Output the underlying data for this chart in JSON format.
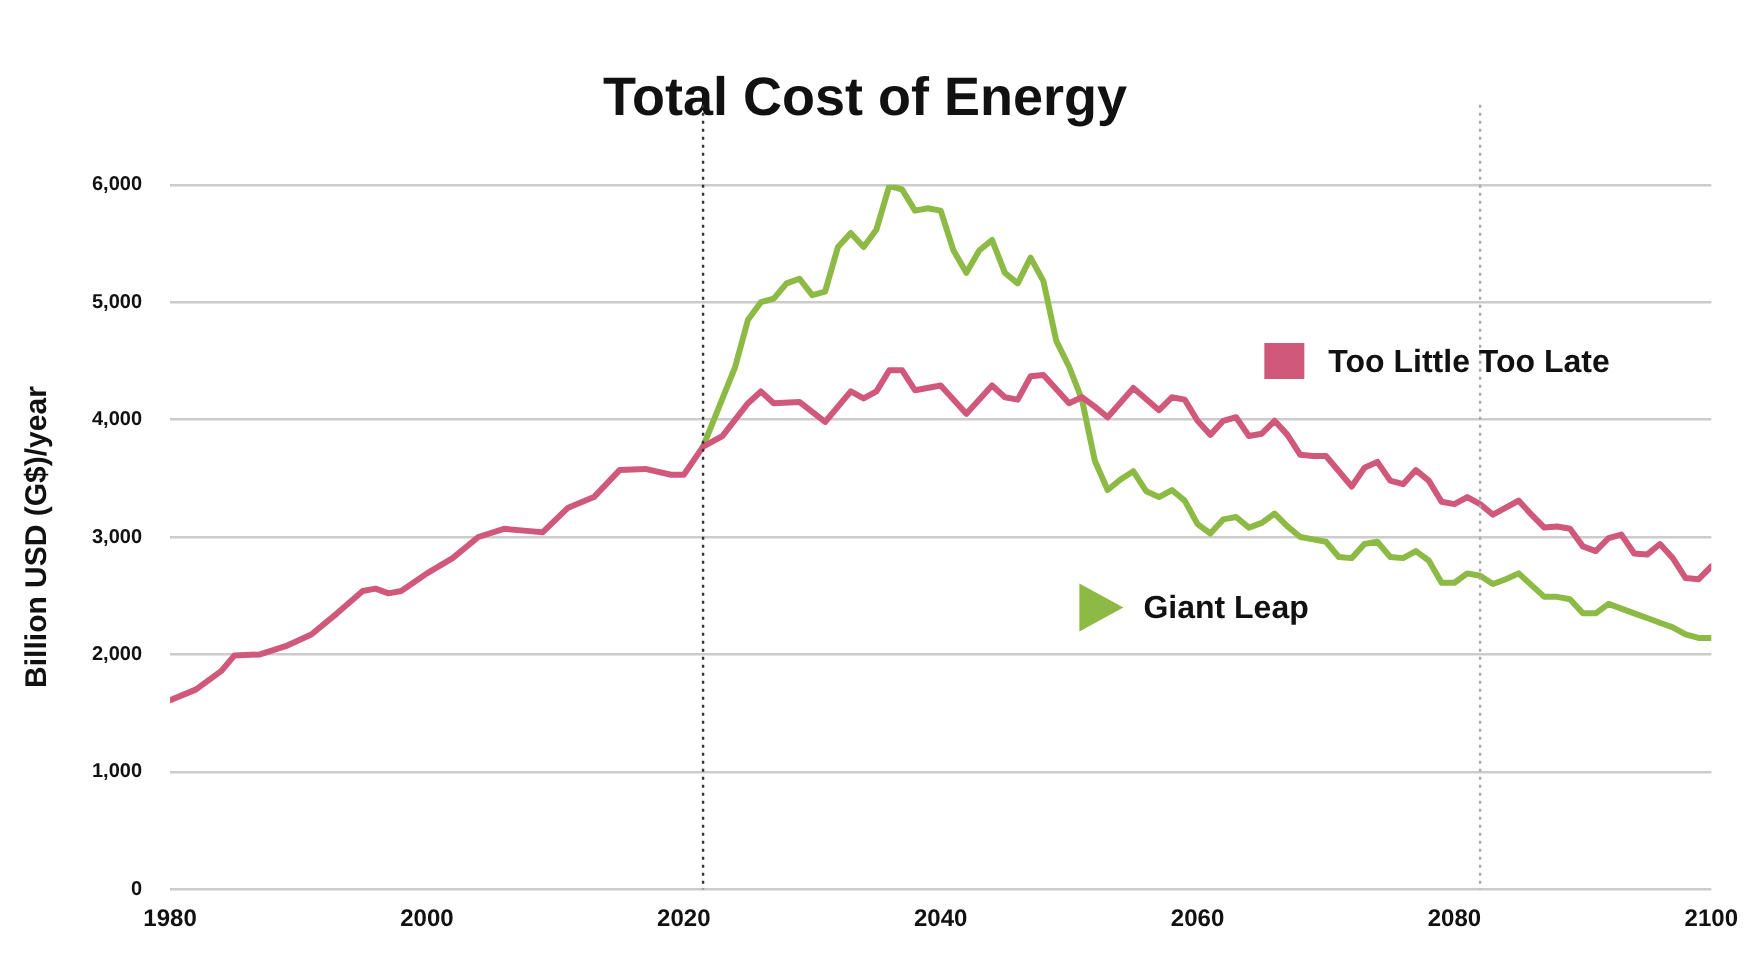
{
  "chart_data": {
    "type": "line",
    "title": "Total Cost of Energy",
    "ylabel": "Billion USD (G$)/year",
    "xlim": [
      1980,
      2100
    ],
    "xticks": [
      1980,
      2000,
      2020,
      2040,
      2060,
      2080,
      2100
    ],
    "ylim": [
      0,
      6000
    ],
    "yticks": [
      0,
      {
        "value": 1000,
        "label": "1,000"
      },
      {
        "value": 2000,
        "label": "2,000"
      },
      {
        "value": 3000,
        "label": "3,000"
      },
      {
        "value": 4000,
        "label": "4,000"
      },
      {
        "value": 5000,
        "label": "5,000"
      },
      {
        "value": 6000,
        "label": "6,000"
      }
    ],
    "grid": "y",
    "legend": "right",
    "line_style": "solid",
    "marker": "none",
    "ref_lines": [
      {
        "axis": "x",
        "value": 2021.5,
        "label": null,
        "line_style": "dotted",
        "color": "#333333"
      },
      {
        "axis": "x",
        "value": 2082,
        "label": null,
        "line_style": "dotted",
        "color": "#aaaaaa"
      }
    ],
    "series": [
      {
        "name": "Too Little Too Late",
        "color": "#d0587a",
        "x": [
          1980,
          1982,
          1984,
          1985,
          1987,
          1989,
          1991,
          1993,
          1995,
          1996,
          1997,
          1998,
          2000,
          2002,
          2004,
          2006,
          2008,
          2009,
          2011,
          2013,
          2015,
          2017,
          2019,
          2020,
          2021.5,
          2023,
          2025,
          2026,
          2027,
          2029,
          2031,
          2033,
          2034,
          2035,
          2036,
          2037,
          2038,
          2040,
          2042,
          2044,
          2045,
          2046,
          2047,
          2048,
          2050,
          2051,
          2052,
          2053,
          2055,
          2057,
          2058,
          2059,
          2060,
          2061,
          2062,
          2063,
          2064,
          2065,
          2066,
          2067,
          2068,
          2069,
          2070,
          2071,
          2072,
          2073,
          2074,
          2075,
          2076,
          2077,
          2078,
          2079,
          2080,
          2081,
          2082,
          2083,
          2084,
          2085,
          2086,
          2087,
          2088,
          2089,
          2090,
          2091,
          2092,
          2093,
          2094,
          2095,
          2096,
          2097,
          2098,
          2099,
          2100
        ],
        "values": [
          1610,
          1700,
          1860,
          1990,
          2000,
          2070,
          2170,
          2350,
          2540,
          2560,
          2520,
          2540,
          2690,
          2820,
          3000,
          3070,
          3050,
          3040,
          3250,
          3340,
          3570,
          3580,
          3530,
          3530,
          3770,
          3860,
          4140,
          4240,
          4140,
          4150,
          3980,
          4240,
          4180,
          4240,
          4420,
          4420,
          4250,
          4290,
          4050,
          4290,
          4190,
          4170,
          4370,
          4380,
          4140,
          4190,
          4110,
          4020,
          4270,
          4080,
          4190,
          4170,
          3990,
          3870,
          3990,
          4020,
          3860,
          3880,
          3990,
          3870,
          3700,
          3690,
          3690,
          3560,
          3430,
          3590,
          3640,
          3480,
          3450,
          3570,
          3480,
          3300,
          3280,
          3340,
          3280,
          3190,
          3250,
          3310,
          3190,
          3080,
          3090,
          3070,
          2920,
          2880,
          2990,
          3020,
          2860,
          2850,
          2940,
          2820,
          2650,
          2640,
          2750
        ]
      },
      {
        "name": "Giant Leap",
        "color": "#8cba45",
        "x": [
          2021.5,
          2024,
          2025,
          2026,
          2027,
          2028,
          2029,
          2030,
          2031,
          2032,
          2033,
          2034,
          2035,
          2036,
          2037,
          2038,
          2039,
          2040,
          2041,
          2042,
          2043,
          2044,
          2045,
          2046,
          2047,
          2048,
          2049,
          2050,
          2051,
          2052,
          2053,
          2054,
          2055,
          2056,
          2057,
          2058,
          2059,
          2060,
          2061,
          2062,
          2063,
          2064,
          2065,
          2066,
          2067,
          2068,
          2069,
          2070,
          2071,
          2072,
          2073,
          2074,
          2075,
          2076,
          2077,
          2078,
          2079,
          2080,
          2081,
          2082,
          2083,
          2084,
          2085,
          2086,
          2087,
          2088,
          2089,
          2090,
          2091,
          2092,
          2093,
          2094,
          2095,
          2096,
          2097,
          2098,
          2099,
          2100
        ],
        "values": [
          3770,
          4450,
          4850,
          5000,
          5030,
          5160,
          5200,
          5060,
          5090,
          5470,
          5590,
          5470,
          5620,
          5990,
          5960,
          5780,
          5800,
          5780,
          5440,
          5250,
          5440,
          5530,
          5250,
          5160,
          5380,
          5180,
          4670,
          4450,
          4170,
          3650,
          3400,
          3490,
          3560,
          3390,
          3340,
          3400,
          3310,
          3110,
          3030,
          3150,
          3170,
          3080,
          3120,
          3200,
          3090,
          3000,
          2980,
          2960,
          2830,
          2820,
          2940,
          2960,
          2830,
          2820,
          2880,
          2800,
          2610,
          2610,
          2690,
          2670,
          2600,
          2640,
          2690,
          2590,
          2490,
          2490,
          2470,
          2350,
          2350,
          2430,
          2390,
          2350,
          2310,
          2270,
          2230,
          2170,
          2140,
          2140
        ]
      }
    ]
  }
}
